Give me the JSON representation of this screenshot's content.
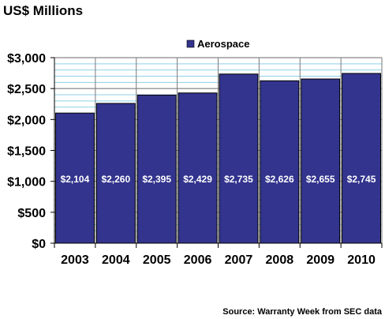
{
  "chart_data": {
    "type": "bar",
    "title": "US$ Millions",
    "categories": [
      "2003",
      "2004",
      "2005",
      "2006",
      "2007",
      "2008",
      "2009",
      "2010"
    ],
    "series": [
      {
        "name": "Aerospace",
        "values": [
          2104,
          2260,
          2395,
          2429,
          2735,
          2626,
          2655,
          2745
        ]
      }
    ],
    "data_labels": [
      "$2,104",
      "$2,260",
      "$2,395",
      "$2,429",
      "$2,735",
      "$2,626",
      "$2,655",
      "$2,745"
    ],
    "y_ticks": [
      0,
      500,
      1000,
      1500,
      2000,
      2500,
      3000
    ],
    "y_tick_labels": [
      "$0",
      "$500",
      "$1,000",
      "$1,500",
      "$2,000",
      "$2,500",
      "$3,000"
    ],
    "ylim": [
      0,
      3000
    ],
    "minor_grid_step": 100,
    "grid": true,
    "legend_position": "top-right",
    "bar_color": "#33348e",
    "source": "Source: Warranty Week from SEC data"
  }
}
